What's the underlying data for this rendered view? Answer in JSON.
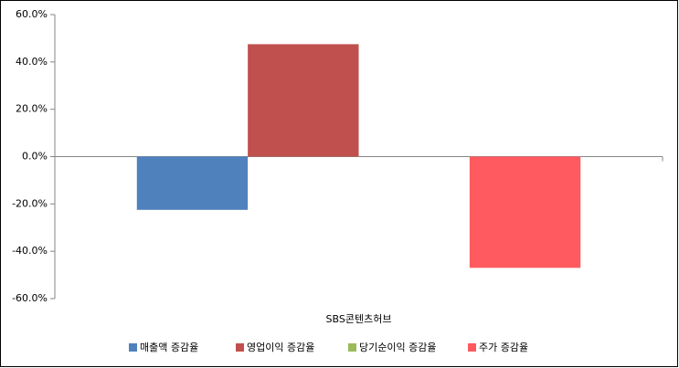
{
  "chart_data": {
    "type": "bar",
    "categories": [
      "SBS콘텐츠허브"
    ],
    "series": [
      {
        "name": "매출액 증감율",
        "color": "#4f81bd",
        "values": [
          -22.5
        ]
      },
      {
        "name": "영업이익 증감율",
        "color": "#c0504d",
        "values": [
          47.5
        ]
      },
      {
        "name": "당기순이익 증감율",
        "color": "#9bbb59",
        "values": [
          0
        ]
      },
      {
        "name": "주가 증감율",
        "color": "#ff5a5f",
        "values": [
          -47
        ]
      }
    ],
    "ylim": [
      -60,
      60
    ],
    "yticks": [
      {
        "value": -60,
        "label": "-60.0%"
      },
      {
        "value": -40,
        "label": "-40.0%"
      },
      {
        "value": -20,
        "label": "-20.0%"
      },
      {
        "value": 0,
        "label": "0.0%"
      },
      {
        "value": 20,
        "label": "20.0%"
      },
      {
        "value": 40,
        "label": "40.0%"
      },
      {
        "value": 60,
        "label": "60.0%"
      }
    ],
    "legend": "bottom"
  }
}
